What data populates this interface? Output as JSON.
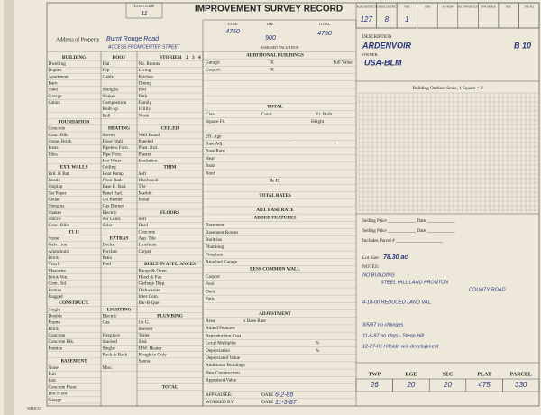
{
  "header": {
    "land_code_label": "LAND CODE",
    "land_code": "11",
    "title": "IMPROVEMENT SURVEY RECORD",
    "land_label": "LAND",
    "imp_label": "IMP.",
    "total_label": "TOTAL",
    "land_value": "4750",
    "imp_value": "900",
    "total_value": "4750",
    "assessed_valuation": "ASSESSED VALUATION"
  },
  "codes": {
    "labels": [
      "ROAD DISTRICT",
      "SCHOOL DISTRICT",
      "FIRE",
      "CEM",
      "A-F HOSP",
      "SEC TWP OR LOT",
      "TWP OR BLK",
      "RGE",
      "TAX NO."
    ],
    "values": [
      "127",
      "8",
      "1",
      null,
      null,
      null,
      null,
      null,
      null
    ]
  },
  "property": {
    "address_label": "Address of Property",
    "address": "Burnt Rouge Road",
    "address_note": "ACCESS FROM CENTER STREET",
    "description_label": "DESCRIPTION",
    "description": "ARDENVOIR",
    "block": "B 10",
    "owner_label": "OWNER:",
    "owner": "USA-BLM"
  },
  "left": {
    "stories_cols": [
      "1",
      "2",
      "3",
      "4"
    ],
    "columns": [
      [
        "BUILDING",
        "Dwelling",
        "Duplex",
        "Apartment",
        "Barn",
        "Shed",
        "Garage",
        "Cabin",
        null,
        null,
        "FOUNDATION",
        "Concrete",
        "Conc. Blk.",
        "Stone, Brick",
        "Posts",
        "Piles",
        null,
        "EXT. WALLS",
        "Brd. & Bat.",
        "Rustic",
        "Shiplap",
        "Tar Paper",
        "Cedar",
        "Shingles",
        "Shakes",
        "Stucco",
        "Conc. Blks.",
        "T1 11",
        "Stone",
        "Galv. Iron",
        "Aluminum",
        "Brick",
        "Vinyl",
        "Masonite",
        "Brick Ven.",
        "Com. Sid.",
        "Roman",
        "Rugged",
        "CONSTRUCT.",
        "Single",
        "Double",
        "Frame",
        "Brick",
        "Concrete",
        "Concrete Blk.",
        "Pumice",
        null,
        "BASEMENT",
        "None",
        "Full",
        "Part",
        "Concrete Floor",
        "Dirt Floor",
        "Garage"
      ],
      [
        "ROOF",
        "Flat",
        "Hip",
        "Gable",
        null,
        "Shingles",
        "Shakes",
        "Composition",
        "Built-up",
        "Roll",
        null,
        "HEATING",
        "Stoves",
        "Floor-Wall",
        "Pipeless Forn.",
        "Pipe Forn.",
        "Hot Water",
        "Ceiling",
        "Heat Pump",
        "Floor Rad.",
        "Base B. Rad.",
        "Panel Rad.",
        "Oil Burner",
        "Gas Burner",
        "Electric",
        "Air Cond.",
        "Solar",
        null,
        "EXTRAS",
        "Decks",
        "Porches",
        "Patio",
        "Pool",
        null,
        null,
        null,
        null,
        null,
        null,
        "LIGHTING",
        "Electric",
        "Gas",
        null,
        "Fireplace",
        "Stacked",
        "Single",
        "Back to Back",
        null,
        "Misc."
      ],
      [
        "STORIES",
        "No. Rooms",
        "Living",
        "Kitchen",
        "Dining",
        "Bed",
        "Bath",
        "Family",
        "Utility",
        "Nook",
        null,
        "CEILED",
        "Wall Board",
        "Paneled",
        "Plast. Brd.",
        "Plaster",
        "Insulation",
        "TRIM",
        "Soft",
        "Hardwood",
        "Tile",
        "Marble",
        "Metal",
        null,
        "FLOORS",
        "Soft",
        "Hard",
        "Concrete",
        "Asp. Tile",
        "Linoleum",
        "Carpet",
        null,
        "BUILT-IN APPLIANCES",
        "Range & Oven",
        "Hood & Fan",
        "Garbage Disp.",
        "Dishwasher",
        "Inter Com.",
        "Bar-B-Que",
        null,
        "PLUMBING",
        "1st G.",
        "Shower",
        "Toilet",
        "Sink",
        "H.W. Heater",
        "Rough-in Only",
        "Sauna",
        null,
        null,
        null,
        "TOTAL"
      ]
    ]
  },
  "middle": {
    "full_value": "Full Value",
    "rows": [
      "ADDITIONAL BUILDINGS",
      "Garage:",
      "Carport:",
      null,
      null,
      null,
      null,
      "TOTAL",
      "Class",
      "Square Ft.",
      null,
      "Eff. Age",
      "Rate Adj.",
      "Base Rate",
      "Heat",
      "Bsmt",
      "Roof",
      "A. C.",
      null,
      "TOTAL RATES",
      null,
      "ADJ. BASE RATE",
      "ADDED FEATURES",
      "Basement",
      "Basement Rooms",
      "Built-ins",
      "Plumbing",
      "Fireplace",
      "Attached Garage",
      "LESS COMMON WALL",
      "Carport",
      "Pool",
      "Deck",
      "Patio",
      null,
      "ADJUSTMENT",
      "Area",
      "Added Features",
      "Reproduction Cost",
      "Local Multiplier",
      "Depreciation",
      "Depreciated Value",
      "Additional Buildings",
      "New Construction",
      "Appraised Value",
      null,
      "APPRAISER:",
      "WORKED BY:"
    ],
    "garage_x": "X",
    "carport_x": "X",
    "cond": "Cond.",
    "yr_built": "Yr. Built",
    "height": "Height",
    "minus": "−",
    "plus": "+",
    "base_rate": "x Base Rate",
    "pct1": "%",
    "pct2": "%",
    "date1_label": "DATE",
    "date1": "6-2-88",
    "date2_label": "DATE",
    "date2": "11-3-87"
  },
  "right": {
    "outline": "Building Outline:  Scale, 1 Square = 2'",
    "selling1": "Selling Price ____________ Date ____________",
    "selling2": "Selling Price ____________ Date ____________",
    "includes": "Includes Parcel # ____________________",
    "lot_label": "Lot Size:",
    "lot_size": "78.30 ac",
    "notes_label": "NOTES:",
    "notes": [
      "NO BUILDING",
      "STEEL HILL LAND FRONTON",
      "COUNTY ROAD",
      "4-18-00 REDUCED LAND VAL.",
      "3/5/97 no changes",
      "11-6-97 no chgs - Steep Hill",
      "12-27-01 Hillside w/o development"
    ],
    "table_headers": [
      "TWP",
      "RGE",
      "SEC",
      "PLAT",
      "PARCEL"
    ],
    "table_values": [
      "26",
      "20",
      "20",
      "475",
      "330"
    ]
  },
  "footer": "WEDCO"
}
